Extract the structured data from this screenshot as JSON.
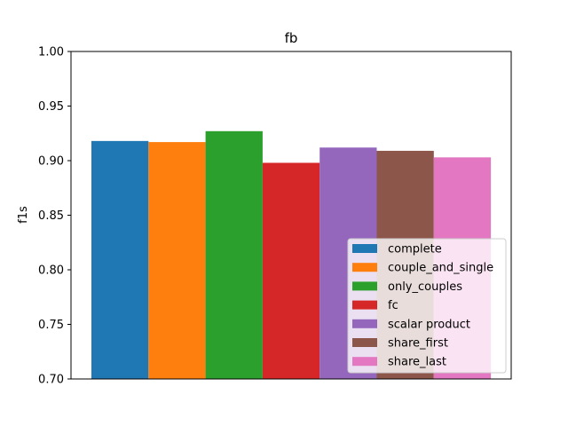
{
  "chart_data": {
    "type": "bar",
    "title": "fb",
    "xlabel": "",
    "ylabel": "f1s",
    "ylim": [
      0.7,
      1.0
    ],
    "yticks": [
      "0.70",
      "0.75",
      "0.80",
      "0.85",
      "0.90",
      "0.95",
      "1.00"
    ],
    "grid": false,
    "legend_position": "lower-right",
    "series": [
      {
        "name": "complete",
        "value": 0.918,
        "color": "#1f77b4"
      },
      {
        "name": "couple_and_single",
        "value": 0.917,
        "color": "#ff7f0e"
      },
      {
        "name": "only_couples",
        "value": 0.927,
        "color": "#2ca02c"
      },
      {
        "name": "fc",
        "value": 0.898,
        "color": "#d62728"
      },
      {
        "name": "scalar product",
        "value": 0.912,
        "color": "#9467bd"
      },
      {
        "name": "share_first",
        "value": 0.909,
        "color": "#8c564b"
      },
      {
        "name": "share_last",
        "value": 0.903,
        "color": "#e377c2"
      }
    ]
  }
}
